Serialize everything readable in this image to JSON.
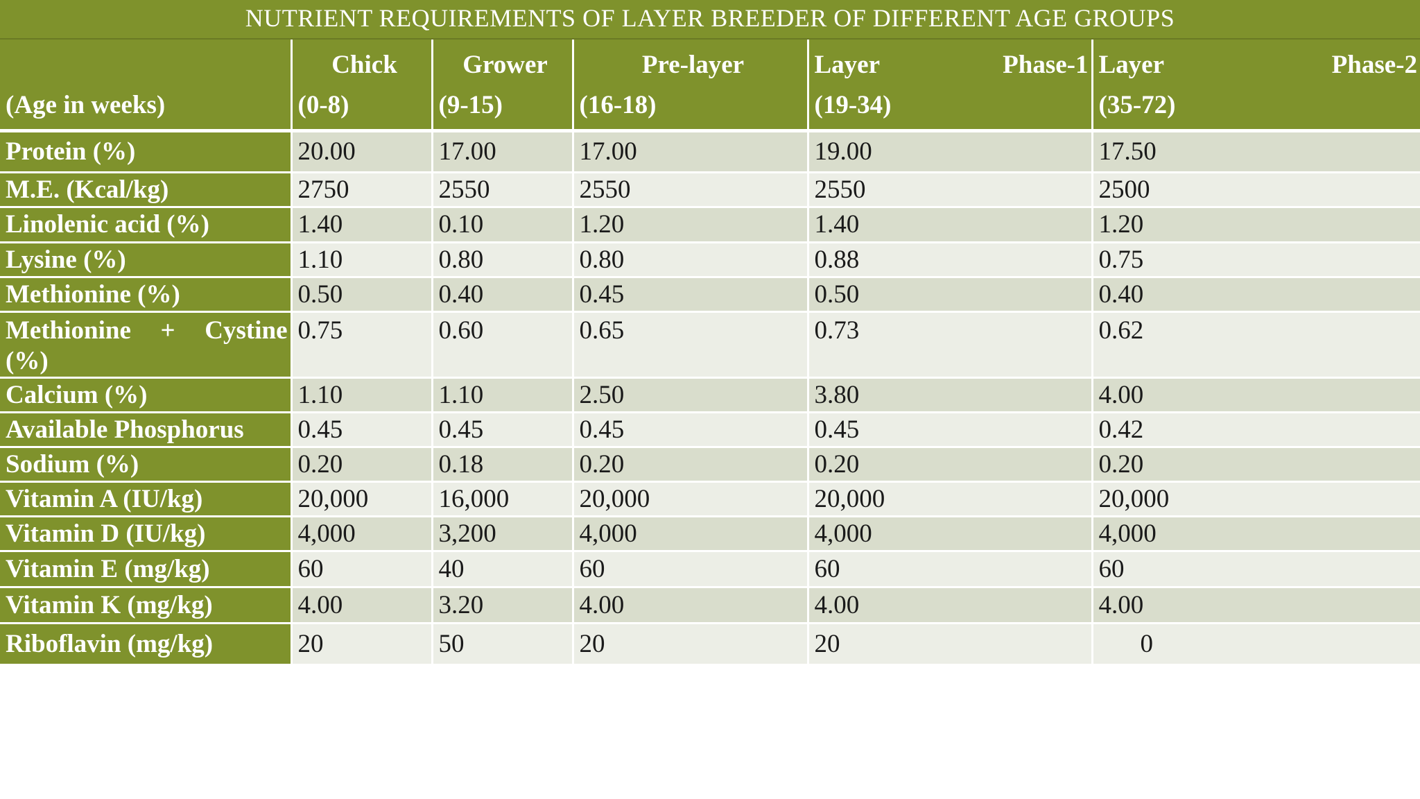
{
  "title": "NUTRIENT REQUIREMENTS OF LAYER BREEDER OF DIFFERENT AGE GROUPS",
  "header": {
    "row_label": "(Age in weeks)",
    "columns": [
      {
        "line1": "Chick",
        "line1b": "",
        "line2": "(0-8)"
      },
      {
        "line1": "Grower",
        "line1b": "",
        "line2": "(9-15)"
      },
      {
        "line1": "Pre-layer",
        "line1b": "",
        "line2": "(16-18)"
      },
      {
        "line1": "Layer",
        "line1b": "Phase-1",
        "line2": "(19-34)"
      },
      {
        "line1": "Layer",
        "line1b": "Phase-2",
        "line2": "(35-72)"
      }
    ]
  },
  "rows": [
    {
      "label": "Protein (%)",
      "values": [
        "20.00",
        "17.00",
        "17.00",
        "19.00",
        "17.50"
      ]
    },
    {
      "label": "M.E. (Kcal/kg)",
      "values": [
        "2750",
        "2550",
        "2550",
        "2550",
        "2500"
      ]
    },
    {
      "label": "Linolenic acid (%)",
      "values": [
        "1.40",
        "0.10",
        "1.20",
        "1.40",
        "1.20"
      ]
    },
    {
      "label": "Lysine (%)",
      "values": [
        "1.10",
        "0.80",
        "0.80",
        "0.88",
        "0.75"
      ]
    },
    {
      "label": "Methionine (%)",
      "values": [
        "0.50",
        "0.40",
        "0.45",
        "0.50",
        "0.40"
      ]
    },
    {
      "label": "Methionine + Cystine (%)",
      "values": [
        "0.75",
        "0.60",
        "0.65",
        "0.73",
        "0.62"
      ]
    },
    {
      "label": "Calcium (%)",
      "values": [
        "1.10",
        "1.10",
        "2.50",
        "3.80",
        "4.00"
      ]
    },
    {
      "label": "Available Phosphorus",
      "values": [
        "0.45",
        "0.45",
        "0.45",
        "0.45",
        "0.42"
      ]
    },
    {
      "label": "Sodium (%)",
      "values": [
        "0.20",
        "0.18",
        "0.20",
        "0.20",
        "0.20"
      ]
    },
    {
      "label": "Vitamin A (IU/kg)",
      "values": [
        "20,000",
        "16,000",
        "20,000",
        "20,000",
        "20,000"
      ]
    },
    {
      "label": "Vitamin D (IU/kg)",
      "values": [
        "4,000",
        "3,200",
        "4,000",
        "4,000",
        "4,000"
      ]
    },
    {
      "label": "Vitamin E (mg/kg)",
      "values": [
        "60",
        "40",
        "60",
        "60",
        "60"
      ]
    },
    {
      "label": "Vitamin K (mg/kg)",
      "values": [
        "4.00",
        "3.20",
        "4.00",
        "4.00",
        "4.00"
      ]
    },
    {
      "label": "Riboflavin (mg/kg)",
      "values": [
        "20",
        "50",
        "20",
        "20",
        "0"
      ]
    }
  ],
  "colors": {
    "header_green": "#7f922c",
    "row_dark": "#d9ddcc",
    "row_light": "#eceee6"
  }
}
